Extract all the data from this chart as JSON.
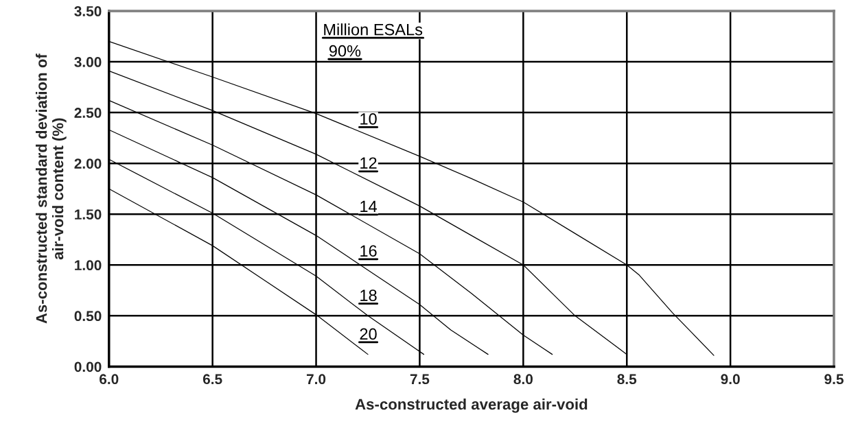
{
  "chart_data": {
    "type": "line",
    "xlabel": "As-constructed average air-void",
    "ylabel": "As-constructed standard deviation of\nair-void content (%)",
    "annotations": [
      "Million ESALs",
      "90%"
    ],
    "xlim": [
      6.0,
      9.5
    ],
    "ylim": [
      0.0,
      3.5
    ],
    "xticks": [
      {
        "value": 6.0,
        "label": "6.0"
      },
      {
        "value": 6.5,
        "label": "6.5"
      },
      {
        "value": 7.0,
        "label": "7.0"
      },
      {
        "value": 7.5,
        "label": "7.5"
      },
      {
        "value": 8.0,
        "label": "8.0"
      },
      {
        "value": 8.5,
        "label": "8.5"
      },
      {
        "value": 9.0,
        "label": "9.0"
      },
      {
        "value": 9.5,
        "label": "9.5"
      }
    ],
    "yticks": [
      {
        "value": 0.0,
        "label": "0.00"
      },
      {
        "value": 0.5,
        "label": "0.50"
      },
      {
        "value": 1.0,
        "label": "1.00"
      },
      {
        "value": 1.5,
        "label": "1.50"
      },
      {
        "value": 2.0,
        "label": "2.00"
      },
      {
        "value": 2.5,
        "label": "2.50"
      },
      {
        "value": 3.0,
        "label": "3.00"
      },
      {
        "value": 3.5,
        "label": "3.50"
      }
    ],
    "grid": true,
    "marker": "none",
    "line_style": "solid",
    "legend": false,
    "series": [
      {
        "name": "10",
        "color": "#000000",
        "x": [
          6.0,
          6.5,
          7.0,
          7.5,
          7.75,
          8.0,
          8.25,
          8.5,
          8.56,
          8.72,
          8.92
        ],
        "values": [
          3.2,
          2.85,
          2.49,
          2.07,
          1.85,
          1.62,
          1.31,
          1.0,
          0.9,
          0.53,
          0.11
        ]
      },
      {
        "name": "12",
        "color": "#000000",
        "x": [
          6.0,
          6.5,
          7.0,
          7.5,
          7.75,
          8.0,
          8.25,
          8.5
        ],
        "values": [
          2.91,
          2.52,
          2.09,
          1.58,
          1.29,
          1.0,
          0.5,
          0.12
        ]
      },
      {
        "name": "14",
        "color": "#000000",
        "x": [
          6.0,
          6.5,
          7.0,
          7.5,
          7.75,
          8.0,
          8.14
        ],
        "values": [
          2.62,
          2.18,
          1.69,
          1.11,
          0.72,
          0.31,
          0.12
        ]
      },
      {
        "name": "16",
        "color": "#000000",
        "x": [
          6.0,
          6.5,
          7.0,
          7.25,
          7.5,
          7.65,
          7.83
        ],
        "values": [
          2.33,
          1.86,
          1.29,
          0.95,
          0.61,
          0.36,
          0.12
        ]
      },
      {
        "name": "18",
        "color": "#000000",
        "x": [
          6.0,
          6.5,
          7.0,
          7.25,
          7.52
        ],
        "values": [
          2.04,
          1.51,
          0.89,
          0.5,
          0.12
        ]
      },
      {
        "name": "20",
        "color": "#000000",
        "x": [
          6.0,
          6.5,
          6.75,
          7.0,
          7.25
        ],
        "values": [
          1.75,
          1.19,
          0.85,
          0.51,
          0.12
        ]
      }
    ]
  }
}
